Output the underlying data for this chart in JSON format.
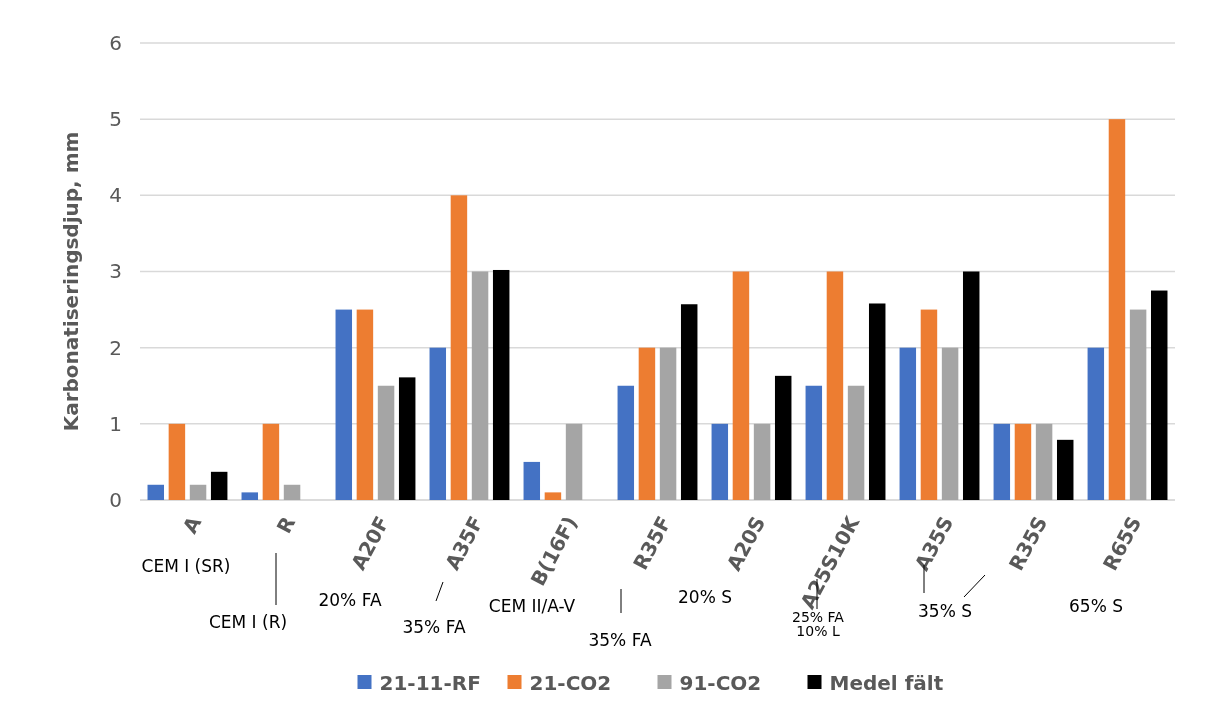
{
  "chart_data": {
    "type": "bar",
    "ylabel": "Karbonatiseringsdjup,  mm",
    "categories": [
      "A",
      "R",
      "A20F",
      "A35F",
      "B(16F)",
      "R35F",
      "A20S",
      "A25S10K",
      "A35S",
      "R35S",
      "R65S"
    ],
    "series": [
      {
        "name": "21-11-RF",
        "color": "#4472c4",
        "values": [
          0.2,
          0.1,
          2.5,
          2,
          0.5,
          1.5,
          1,
          1.5,
          2,
          1,
          2
        ]
      },
      {
        "name": "21-CO2",
        "color": "#ed7d31",
        "values": [
          1,
          1,
          2.5,
          4,
          0.1,
          2,
          3,
          3,
          2.5,
          1,
          5
        ]
      },
      {
        "name": "91-CO2",
        "color": "#a5a5a5",
        "values": [
          0.2,
          0.2,
          1.5,
          3,
          1,
          2,
          1,
          1.5,
          2,
          1,
          2.5
        ]
      },
      {
        "name": "Medel fält",
        "color": "#000000",
        "values": [
          0.37,
          null,
          1.61,
          3.02,
          null,
          2.57,
          1.63,
          2.58,
          3,
          0.79,
          2.75
        ]
      }
    ],
    "ylim": [
      0,
      6
    ],
    "yticks": [
      0,
      1,
      2,
      3,
      4,
      5,
      6
    ],
    "grid": "y",
    "legend": "bottom",
    "annotations": [
      "CEM I (SR)",
      "CEM I (R)",
      "20% FA",
      "35% FA",
      "CEM II/A-V",
      "35% FA",
      "20% S",
      "25% FA\n10% L",
      "35% S",
      "65% S"
    ]
  }
}
